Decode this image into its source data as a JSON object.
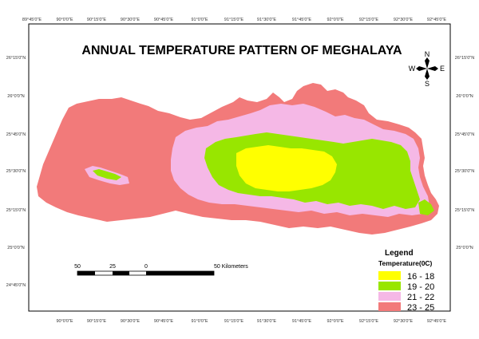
{
  "title": "ANNUAL TEMPERATURE PATTERN OF MEGHALAYA",
  "top_ticks": [
    "89°45'0\"E",
    "90°0'0\"E",
    "90°15'0\"E",
    "90°30'0\"E",
    "90°45'0\"E",
    "91°0'0\"E",
    "91°15'0\"E",
    "91°30'0\"E",
    "91°45'0\"E",
    "92°0'0\"E",
    "92°15'0\"E",
    "92°30'0\"E",
    "92°45'0\"E"
  ],
  "bottom_ticks": [
    "90°0'0\"E",
    "90°15'0\"E",
    "90°30'0\"E",
    "90°45'0\"E",
    "91°0'0\"E",
    "91°15'0\"E",
    "91°30'0\"E",
    "91°45'0\"E",
    "92°0'0\"E",
    "92°15'0\"E",
    "92°30'0\"E",
    "92°45'0\"E"
  ],
  "left_ticks": [
    "26°15'0\"N",
    "26°0'0\"N",
    "25°45'0\"N",
    "25°30'0\"N",
    "25°15'0\"N",
    "25°0'0\"N",
    "24°45'0\"N"
  ],
  "right_ticks": [
    "26°15'0\"N",
    "26°0'0\"N",
    "25°45'0\"N",
    "25°30'0\"N",
    "25°15'0\"N",
    "25°0'0\"N"
  ],
  "compass": {
    "n": "N",
    "s": "S",
    "e": "E",
    "w": "W"
  },
  "scale": {
    "labels": [
      "50",
      "25",
      "0",
      "50 Kilometers"
    ]
  },
  "legend": {
    "title": "Legend",
    "subtitle": "Temperature(0C)",
    "items": [
      {
        "label": "16 - 18",
        "color": "#ffff00"
      },
      {
        "label": "19 - 20",
        "color": "#98e600"
      },
      {
        "label": "21 - 22",
        "color": "#f5b8e6"
      },
      {
        "label": "23 - 25",
        "color": "#f27a7a"
      }
    ]
  }
}
